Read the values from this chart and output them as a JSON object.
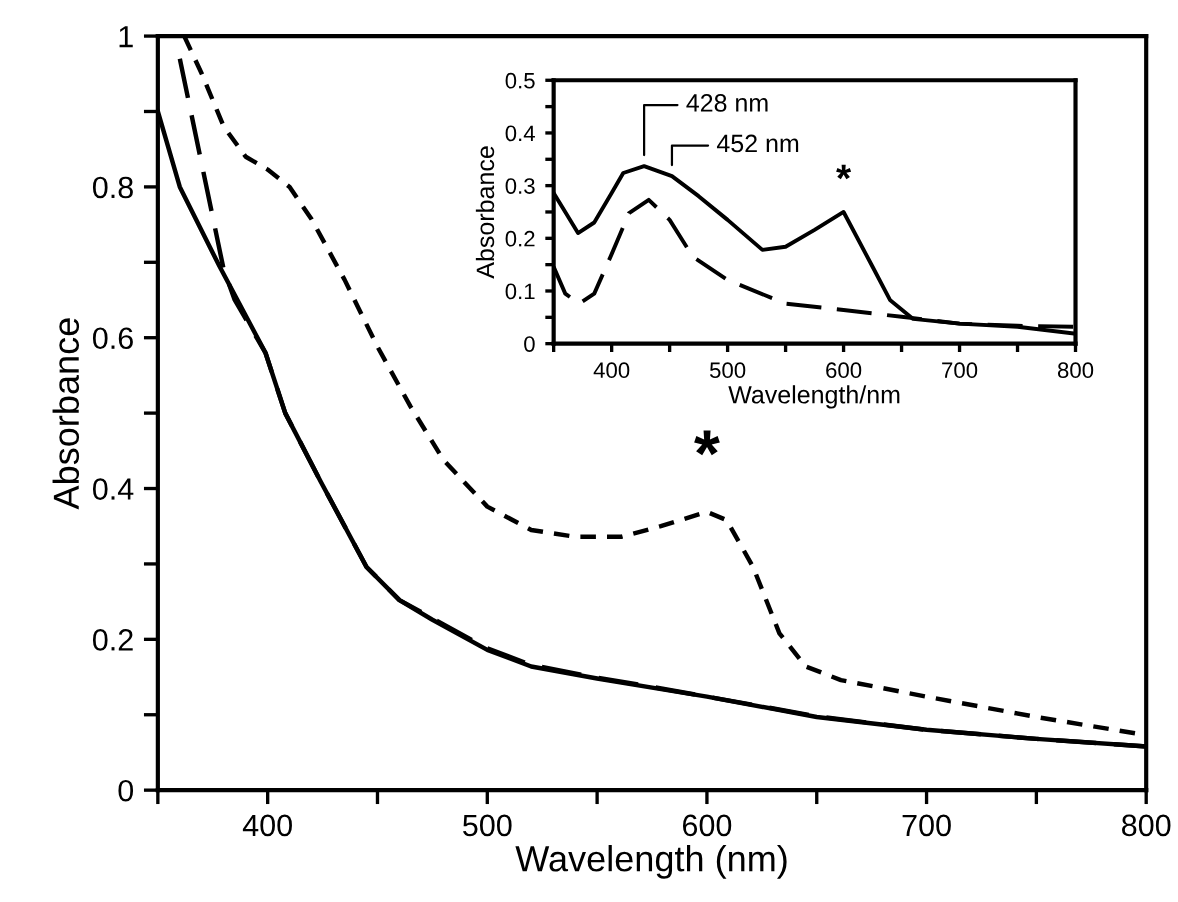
{
  "chart_data": [
    {
      "type": "line",
      "xlabel": "Wavelength (nm)",
      "ylabel": "Absorbance",
      "xlim": [
        350,
        800
      ],
      "ylim": [
        0,
        1
      ],
      "xticks": [
        {
          "value": 350,
          "label": null
        },
        400,
        {
          "value": 450,
          "label": null
        },
        500,
        {
          "value": 550,
          "label": null
        },
        600,
        {
          "value": 650,
          "label": null
        },
        700,
        {
          "value": 750,
          "label": null
        },
        800
      ],
      "yticks": [
        0,
        {
          "value": 0.1,
          "label": null
        },
        0.2,
        {
          "value": 0.3,
          "label": null
        },
        0.4,
        {
          "value": 0.5,
          "label": null
        },
        0.6,
        {
          "value": 0.7,
          "label": null
        },
        0.8,
        {
          "value": 0.9,
          "label": null
        },
        1
      ],
      "series": [
        {
          "color": "#000000",
          "line_style": "solid",
          "x": [
            350,
            360,
            378,
            399,
            408,
            424,
            445,
            460,
            475,
            500,
            520,
            550,
            575,
            600,
            650,
            700,
            750,
            800
          ],
          "values": [
            0.9,
            0.8,
            0.695,
            0.58,
            0.5,
            0.41,
            0.296,
            0.252,
            0.226,
            0.186,
            0.164,
            0.148,
            0.136,
            0.124,
            0.097,
            0.08,
            0.068,
            0.058
          ]
        },
        {
          "color": "#000000",
          "line_style": "dashed",
          "x": [
            360,
            370,
            380,
            385,
            399,
            408,
            424,
            445,
            460,
            475,
            500,
            520,
            550,
            575,
            600,
            650,
            700,
            750,
            800
          ],
          "values": [
            0.97,
            0.83,
            0.69,
            0.65,
            0.58,
            0.5,
            0.41,
            0.296,
            0.252,
            0.228,
            0.188,
            0.166,
            0.149,
            0.137,
            0.124,
            0.098,
            0.08,
            0.068,
            0.058
          ]
        },
        {
          "color": "#000000",
          "line_style": "dotted",
          "x": [
            362,
            370,
            380,
            390,
            400,
            410,
            420,
            435,
            450,
            465,
            480,
            500,
            520,
            540,
            561,
            579,
            600,
            609,
            621,
            633,
            645,
            661,
            700,
            750,
            800
          ],
          "values": [
            1.0,
            0.95,
            0.88,
            0.84,
            0.823,
            0.8,
            0.757,
            0.677,
            0.588,
            0.509,
            0.438,
            0.376,
            0.345,
            0.336,
            0.336,
            0.35,
            0.369,
            0.358,
            0.296,
            0.208,
            0.164,
            0.146,
            0.124,
            0.097,
            0.073
          ]
        }
      ],
      "annotations": [
        {
          "text": "*",
          "x": 600,
          "y": 0.369
        }
      ]
    },
    {
      "type": "line",
      "xlabel": "Wavelength/nm",
      "ylabel": "Absorbance",
      "xlim": [
        350,
        800
      ],
      "ylim": [
        0,
        0.5
      ],
      "xticks": [
        {
          "value": 350,
          "label": null
        },
        400,
        {
          "value": 450,
          "label": null
        },
        500,
        {
          "value": 550,
          "label": null
        },
        600,
        {
          "value": 650,
          "label": null
        },
        700,
        {
          "value": 750,
          "label": null
        },
        800
      ],
      "yticks": [
        0,
        {
          "value": 0.05,
          "label": null
        },
        0.1,
        {
          "value": 0.15,
          "label": null
        },
        0.2,
        {
          "value": 0.25,
          "label": null
        },
        0.3,
        {
          "value": 0.35,
          "label": null
        },
        0.4,
        {
          "value": 0.45,
          "label": null
        },
        0.5
      ],
      "series": [
        {
          "color": "#000000",
          "line_style": "solid",
          "x": [
            350,
            360,
            371,
            385,
            400,
            410,
            428,
            452,
            475,
            500,
            530,
            550,
            575,
            600,
            625,
            640,
            660,
            700,
            750,
            800
          ],
          "values": [
            0.286,
            0.25,
            0.21,
            0.23,
            0.286,
            0.324,
            0.337,
            0.318,
            0.28,
            0.235,
            0.178,
            0.184,
            0.216,
            0.25,
            0.146,
            0.083,
            0.047,
            0.038,
            0.032,
            0.019
          ]
        },
        {
          "color": "#000000",
          "line_style": "dashed",
          "x": [
            350,
            360,
            372,
            385,
            400,
            415,
            432,
            450,
            470,
            500,
            550,
            600,
            650,
            700,
            750,
            800
          ],
          "values": [
            0.146,
            0.095,
            0.076,
            0.095,
            0.17,
            0.248,
            0.273,
            0.235,
            0.165,
            0.121,
            0.076,
            0.064,
            0.051,
            0.038,
            0.034,
            0.032
          ]
        }
      ],
      "annotations": [
        {
          "text": "428 nm",
          "x": 428,
          "y": 0.337
        },
        {
          "text": "452 nm",
          "x": 452,
          "y": 0.318
        },
        {
          "text": "*",
          "x": 600,
          "y": 0.25
        }
      ]
    }
  ]
}
